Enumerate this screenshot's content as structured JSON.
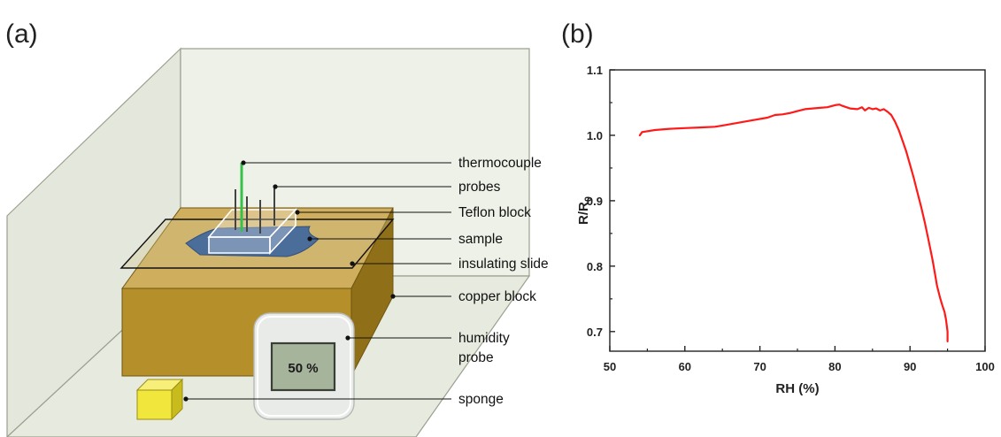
{
  "panels": {
    "a_label": "(a)",
    "b_label": "(b)"
  },
  "diagram": {
    "labels": {
      "thermocouple": "thermocouple",
      "probes": "probes",
      "teflon_block": "Teflon block",
      "sample": "sample",
      "insulating_slide": "insulating slide",
      "copper_block": "copper block",
      "humidity_probe_line1": "humidity",
      "humidity_probe_line2": "probe",
      "sponge": "sponge"
    },
    "display_reading": "50 %",
    "colors": {
      "copper_front": "#b58f2a",
      "copper_top": "#cfae5e",
      "copper_side": "#8f6f17",
      "sponge": "#f1e63c",
      "sample": "#4a6d9a",
      "thermocouple": "#36c24a"
    }
  },
  "chart_data": {
    "type": "line",
    "xlabel": "RH (%)",
    "ylabel": "R/R",
    "ylabel_subscript": "0",
    "xlim": [
      50,
      100
    ],
    "ylim": [
      0.67,
      1.1
    ],
    "x_ticks": [
      50,
      60,
      70,
      80,
      90,
      100
    ],
    "x_tick_labels": [
      "50",
      "60",
      "70",
      "80",
      "90",
      "100"
    ],
    "y_ticks": [
      0.7,
      0.8,
      0.9,
      1.0,
      1.1
    ],
    "y_tick_labels": [
      "0.7",
      "0.8",
      "0.9",
      "1.0",
      "1.1"
    ],
    "grid": false,
    "series": [
      {
        "color": "#ff1a1a",
        "x": [
          54,
          54.3,
          56,
          58,
          60,
          62,
          64,
          65,
          67,
          69,
          71,
          72,
          73,
          74,
          75,
          76,
          77,
          78,
          79,
          80,
          80.6,
          81,
          82,
          83,
          83.6,
          84,
          84.5,
          85,
          85.5,
          86,
          86.5,
          87,
          87.5,
          88,
          88.5,
          89,
          89.5,
          90,
          90.5,
          91,
          91.5,
          92,
          92.5,
          93,
          93.3,
          93.6,
          94,
          94.3,
          94.6,
          94.8,
          95,
          95
        ],
        "y": [
          1.0,
          1.005,
          1.008,
          1.01,
          1.011,
          1.012,
          1.013,
          1.015,
          1.019,
          1.023,
          1.027,
          1.031,
          1.032,
          1.034,
          1.037,
          1.04,
          1.041,
          1.042,
          1.043,
          1.046,
          1.047,
          1.045,
          1.041,
          1.04,
          1.043,
          1.038,
          1.042,
          1.04,
          1.041,
          1.038,
          1.04,
          1.036,
          1.031,
          1.021,
          1.008,
          0.992,
          0.975,
          0.955,
          0.935,
          0.912,
          0.89,
          0.865,
          0.838,
          0.81,
          0.79,
          0.77,
          0.752,
          0.74,
          0.73,
          0.718,
          0.7,
          0.685
        ]
      }
    ]
  }
}
